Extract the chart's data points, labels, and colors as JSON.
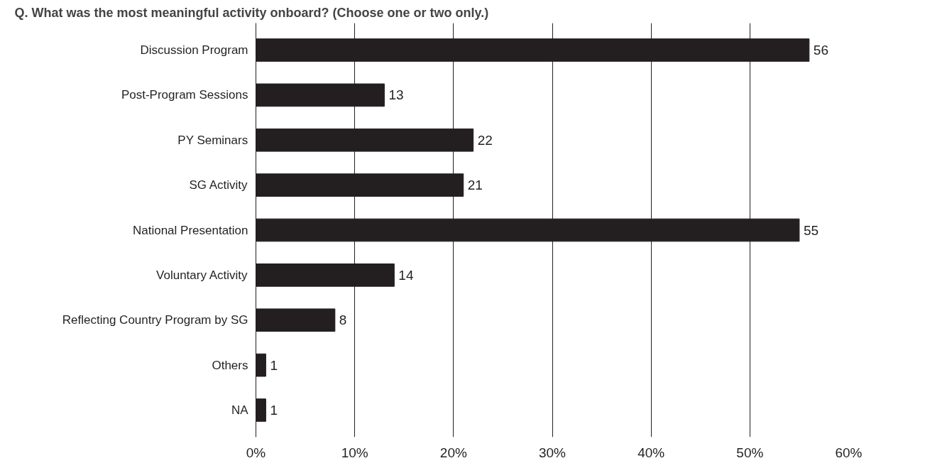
{
  "chart_data": {
    "type": "bar",
    "orientation": "horizontal",
    "title": "Q. What was the most meaningful activity onboard? (Choose one or two only.)",
    "categories": [
      "Discussion Program",
      "Post-Program Sessions",
      "PY Seminars",
      "SG Activity",
      "National Presentation",
      "Voluntary Activity",
      "Reflecting Country Program by SG",
      "Others",
      "NA"
    ],
    "values": [
      56,
      13,
      22,
      21,
      55,
      14,
      8,
      1,
      1
    ],
    "color": "#231f20",
    "xlim": [
      0,
      60
    ],
    "xticks": [
      {
        "value": 0,
        "label": "0%"
      },
      {
        "value": 10,
        "label": "10%"
      },
      {
        "value": 20,
        "label": "20%"
      },
      {
        "value": 30,
        "label": "30%"
      },
      {
        "value": 40,
        "label": "40%"
      },
      {
        "value": 50,
        "label": "50%"
      },
      {
        "value": 60,
        "label": "60%"
      }
    ],
    "grid": "x",
    "data_labels": true
  }
}
